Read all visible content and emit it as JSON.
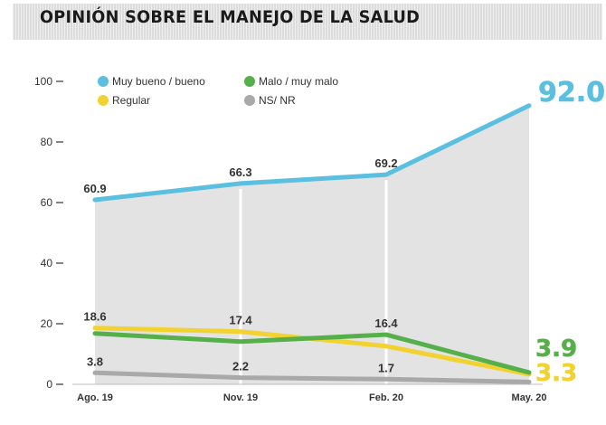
{
  "chart_data": {
    "type": "line",
    "title": "OPINIÓN SOBRE EL MANEJO DE LA SALUD",
    "categories": [
      "Ago. 19",
      "Nov. 19",
      "Feb. 20",
      "May. 20"
    ],
    "ylim": [
      0,
      100
    ],
    "y_ticks": [
      "100",
      "80",
      "60",
      "40",
      "20",
      "0"
    ],
    "y_tick_values": [
      100,
      80,
      60,
      40,
      20,
      0
    ],
    "grid": false,
    "legend_position": "top-left",
    "series": [
      {
        "name": "Muy bueno / bueno",
        "color": "#5bbfe0",
        "values": [
          60.9,
          66.3,
          69.2,
          92.0
        ],
        "labels": [
          "60.9",
          "66.3",
          "69.2",
          "92.0"
        ],
        "highlight_last": true,
        "area": true
      },
      {
        "name": "Malo / muy malo",
        "color": "#55b04a",
        "values": [
          16.8,
          14.1,
          16.4,
          3.9
        ],
        "labels": [
          "",
          "",
          "16.4",
          "3.9"
        ],
        "highlight_last": true
      },
      {
        "name": "Regular",
        "color": "#f2d230",
        "values": [
          18.6,
          17.4,
          12.6,
          3.3
        ],
        "labels": [
          "18.6",
          "17.4",
          "",
          "3.3"
        ],
        "highlight_last": true
      },
      {
        "name": "NS/ NR",
        "color": "#a9a9a9",
        "values": [
          3.8,
          2.2,
          1.7,
          0.8
        ],
        "labels": [
          "3.8",
          "2.2",
          "1.7",
          ""
        ],
        "highlight_last": false
      }
    ],
    "legend": [
      {
        "label": "Muy bueno / bueno",
        "color": "#5bbfe0"
      },
      {
        "label": "Malo / muy malo",
        "color": "#55b04a"
      },
      {
        "label": "Regular",
        "color": "#f2d230"
      },
      {
        "label": "NS/ NR",
        "color": "#a9a9a9"
      }
    ]
  }
}
